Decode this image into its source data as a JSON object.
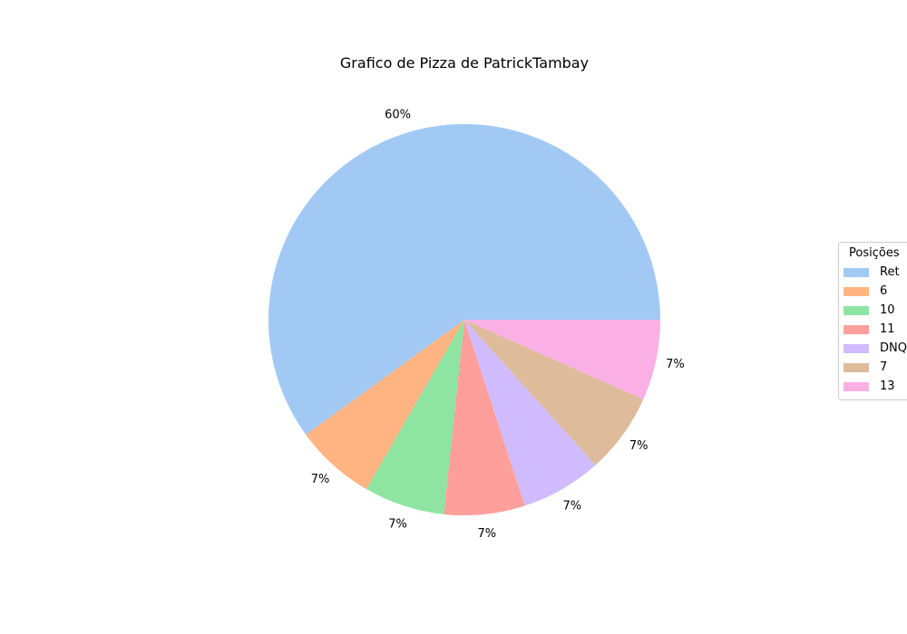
{
  "chart_data": {
    "type": "pie",
    "title": "Grafico de Pizza de PatrickTambay",
    "labels": [
      "Ret",
      "6",
      "10",
      "11",
      "DNQ",
      "7",
      "13"
    ],
    "values": [
      60,
      6.667,
      6.667,
      6.667,
      6.667,
      6.667,
      6.667
    ],
    "pct_labels": [
      "60%",
      "7%",
      "7%",
      "7%",
      "7%",
      "7%",
      "7%"
    ],
    "colors": [
      "#a1c9f4",
      "#ffb482",
      "#8de5a1",
      "#ff9f9b",
      "#d0bbff",
      "#debb9b",
      "#fab0e4"
    ],
    "start_angle_deg": 0,
    "direction": "counterclockwise",
    "legend": {
      "title": "Posições",
      "placement": "center-right"
    }
  }
}
